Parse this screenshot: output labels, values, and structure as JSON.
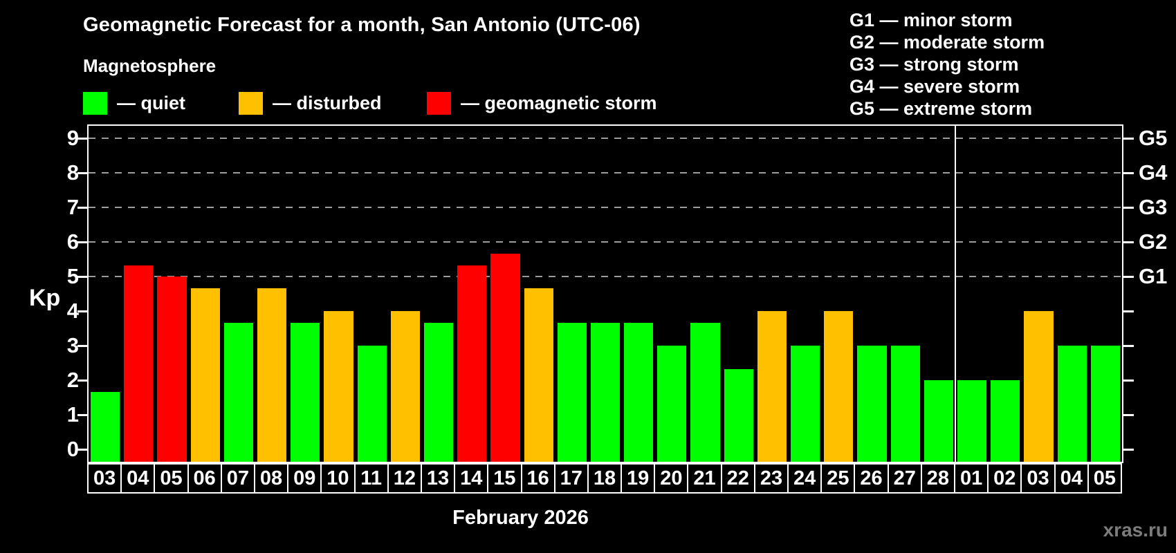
{
  "header": {
    "title": "Geomagnetic Forecast for a month, San Antonio (UTC-06)",
    "subtitle": "Magnetosphere"
  },
  "legend": {
    "items": [
      {
        "label": "— quiet",
        "status": "quiet",
        "color": "#00ff00"
      },
      {
        "label": "— disturbed",
        "status": "disturbed",
        "color": "#ffc000"
      },
      {
        "label": "— geomagnetic storm",
        "status": "storm",
        "color": "#ff0000"
      }
    ]
  },
  "g_legend": {
    "items": [
      "G1 — minor storm",
      "G2 — moderate storm",
      "G3 — strong storm",
      "G4 — severe storm",
      "G5 — extreme storm"
    ]
  },
  "chart_data": {
    "type": "bar",
    "title": "Geomagnetic Forecast for a month, San Antonio (UTC-06)",
    "ylabel": "Kp",
    "xlabel": "February 2026",
    "ylim": [
      -0.36,
      9.4
    ],
    "yticks": [
      0,
      1,
      2,
      3,
      4,
      5,
      6,
      7,
      8,
      9
    ],
    "gridline_levels": [
      5,
      6,
      7,
      8,
      9
    ],
    "grid": "dashed-horizontal",
    "right_axis_labels": [
      {
        "level": 5,
        "label": "G1"
      },
      {
        "level": 6,
        "label": "G2"
      },
      {
        "level": 7,
        "label": "G3"
      },
      {
        "level": 8,
        "label": "G4"
      },
      {
        "level": 9,
        "label": "G5"
      }
    ],
    "month_separator_index": 26,
    "status_colors": {
      "quiet": "#00ff00",
      "disturbed": "#ffc000",
      "storm": "#ff0000"
    },
    "colors": {
      "background": "#000000",
      "axis": "#ffffff",
      "grid": "#9d9d9d",
      "text": "#ffffff"
    },
    "bars": [
      {
        "date": "03",
        "kp": 1.67,
        "status": "quiet"
      },
      {
        "date": "04",
        "kp": 5.33,
        "status": "storm"
      },
      {
        "date": "05",
        "kp": 5.0,
        "status": "storm"
      },
      {
        "date": "06",
        "kp": 4.67,
        "status": "disturbed"
      },
      {
        "date": "07",
        "kp": 3.67,
        "status": "quiet"
      },
      {
        "date": "08",
        "kp": 4.67,
        "status": "disturbed"
      },
      {
        "date": "09",
        "kp": 3.67,
        "status": "quiet"
      },
      {
        "date": "10",
        "kp": 4.0,
        "status": "disturbed"
      },
      {
        "date": "11",
        "kp": 3.0,
        "status": "quiet"
      },
      {
        "date": "12",
        "kp": 4.0,
        "status": "disturbed"
      },
      {
        "date": "13",
        "kp": 3.67,
        "status": "quiet"
      },
      {
        "date": "14",
        "kp": 5.33,
        "status": "storm"
      },
      {
        "date": "15",
        "kp": 5.67,
        "status": "storm"
      },
      {
        "date": "16",
        "kp": 4.67,
        "status": "disturbed"
      },
      {
        "date": "17",
        "kp": 3.67,
        "status": "quiet"
      },
      {
        "date": "18",
        "kp": 3.67,
        "status": "quiet"
      },
      {
        "date": "19",
        "kp": 3.67,
        "status": "quiet"
      },
      {
        "date": "20",
        "kp": 3.0,
        "status": "quiet"
      },
      {
        "date": "21",
        "kp": 3.67,
        "status": "quiet"
      },
      {
        "date": "22",
        "kp": 2.33,
        "status": "quiet"
      },
      {
        "date": "23",
        "kp": 4.0,
        "status": "disturbed"
      },
      {
        "date": "24",
        "kp": 3.0,
        "status": "quiet"
      },
      {
        "date": "25",
        "kp": 4.0,
        "status": "disturbed"
      },
      {
        "date": "26",
        "kp": 3.0,
        "status": "quiet"
      },
      {
        "date": "27",
        "kp": 3.0,
        "status": "quiet"
      },
      {
        "date": "28",
        "kp": 2.0,
        "status": "quiet"
      },
      {
        "date": "01",
        "kp": 2.0,
        "status": "quiet"
      },
      {
        "date": "02",
        "kp": 2.0,
        "status": "quiet"
      },
      {
        "date": "03",
        "kp": 4.0,
        "status": "disturbed"
      },
      {
        "date": "04",
        "kp": 3.0,
        "status": "quiet"
      },
      {
        "date": "05",
        "kp": 3.0,
        "status": "quiet"
      }
    ]
  },
  "footer": {
    "xlabel": "February 2026",
    "watermark": "xras.ru"
  }
}
